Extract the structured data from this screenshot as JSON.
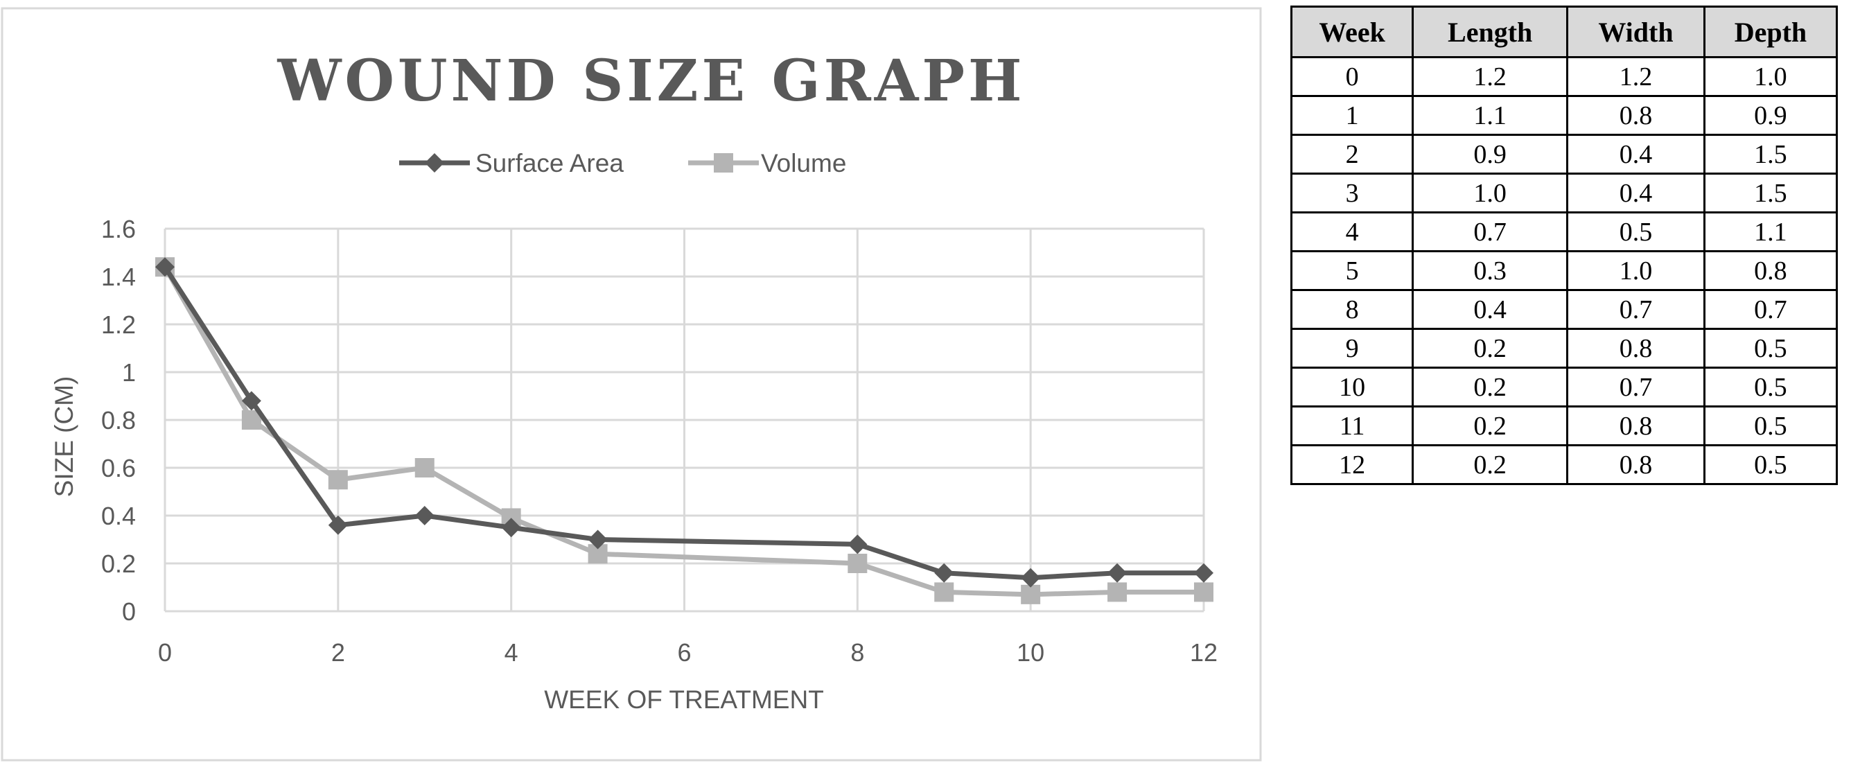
{
  "chart_data": {
    "type": "line",
    "title": "WOUND SIZE GRAPH",
    "xlabel": "WEEK OF TREATMENT",
    "ylabel": "SIZE (CM)",
    "xlim": [
      0,
      12
    ],
    "ylim": [
      0,
      1.6
    ],
    "x_ticks": [
      "0",
      "2",
      "4",
      "6",
      "8",
      "10",
      "12"
    ],
    "y_ticks": [
      "0",
      "0.2",
      "0.4",
      "0.6",
      "0.8",
      "1",
      "1.2",
      "1.4",
      "1.6"
    ],
    "grid": true,
    "legend_position": "top-center",
    "x": [
      0,
      1,
      2,
      3,
      4,
      5,
      8,
      9,
      10,
      11,
      12
    ],
    "series": [
      {
        "name": "Surface Area",
        "marker": "diamond",
        "color": "#595959",
        "values": [
          1.44,
          0.88,
          0.36,
          0.4,
          0.35,
          0.3,
          0.28,
          0.16,
          0.14,
          0.16,
          0.16
        ]
      },
      {
        "name": "Volume",
        "marker": "square",
        "color": "#b4b4b4",
        "values": [
          1.44,
          0.8,
          0.55,
          0.6,
          0.39,
          0.24,
          0.2,
          0.08,
          0.07,
          0.08,
          0.08
        ]
      }
    ]
  },
  "table": {
    "headers": [
      "Week",
      "Length",
      "Width",
      "Depth"
    ],
    "rows": [
      [
        "0",
        "1.2",
        "1.2",
        "1.0"
      ],
      [
        "1",
        "1.1",
        "0.8",
        "0.9"
      ],
      [
        "2",
        "0.9",
        "0.4",
        "1.5"
      ],
      [
        "3",
        "1.0",
        "0.4",
        "1.5"
      ],
      [
        "4",
        "0.7",
        "0.5",
        "1.1"
      ],
      [
        "5",
        "0.3",
        "1.0",
        "0.8"
      ],
      [
        "8",
        "0.4",
        "0.7",
        "0.7"
      ],
      [
        "9",
        "0.2",
        "0.8",
        "0.5"
      ],
      [
        "10",
        "0.2",
        "0.7",
        "0.5"
      ],
      [
        "11",
        "0.2",
        "0.8",
        "0.5"
      ],
      [
        "12",
        "0.2",
        "0.8",
        "0.5"
      ]
    ]
  }
}
